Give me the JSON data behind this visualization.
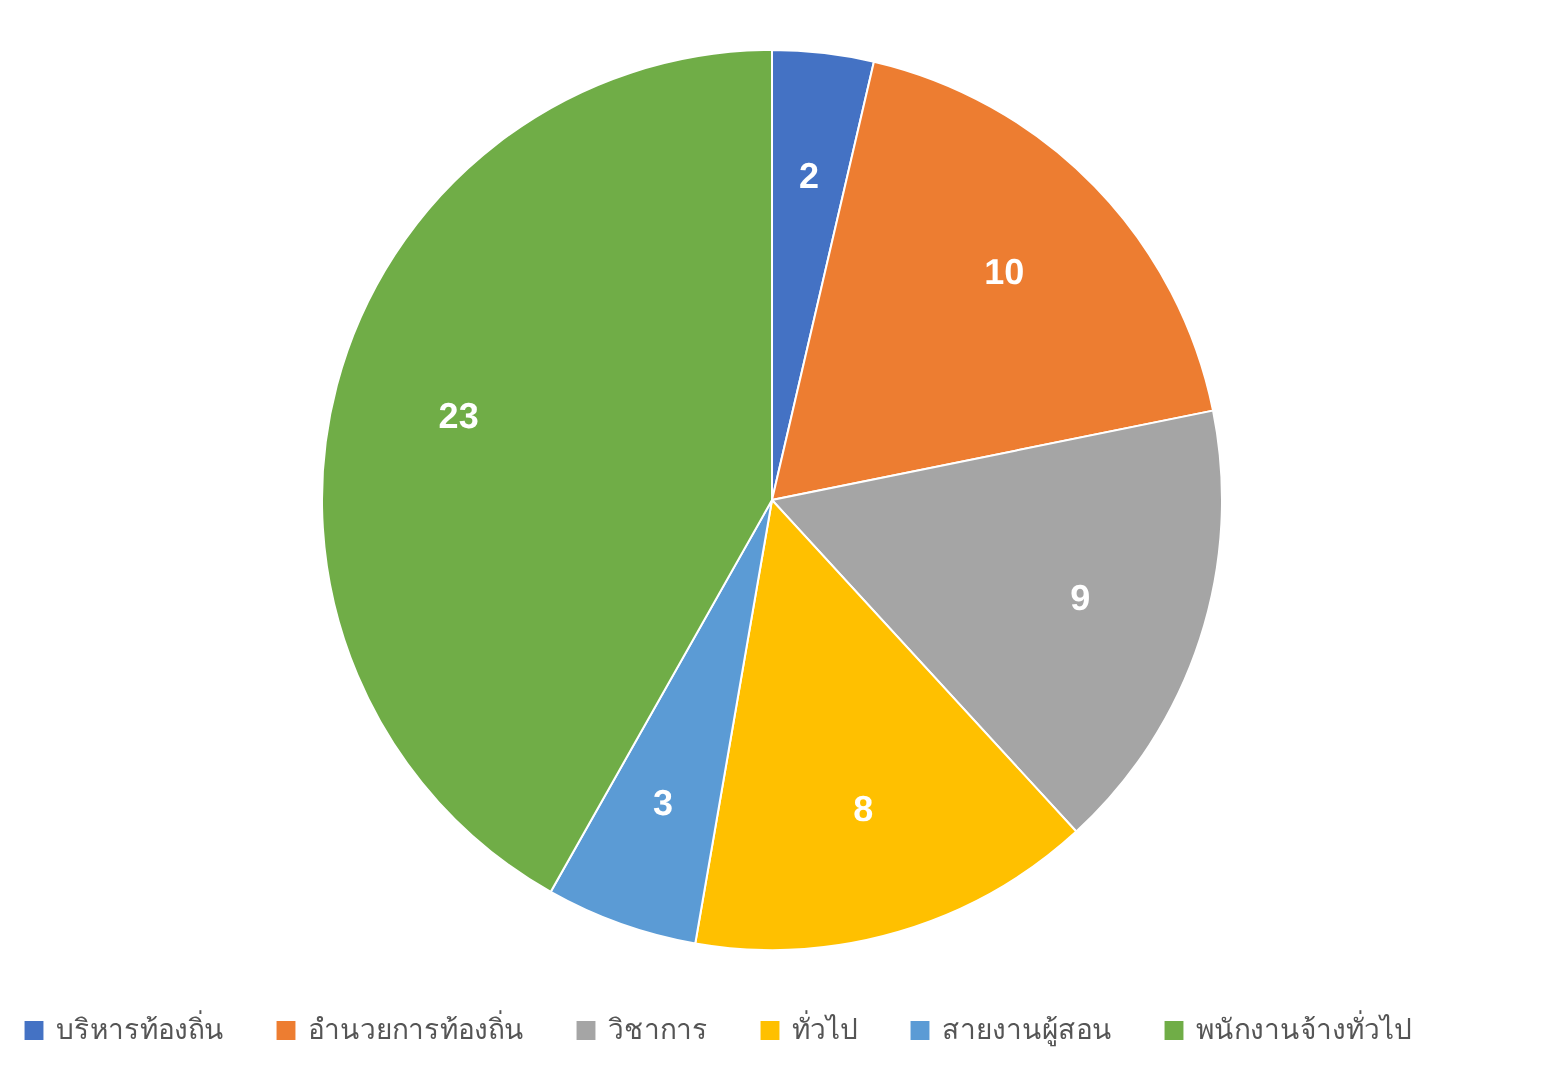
{
  "chart_data": {
    "type": "pie",
    "categories": [
      "บริหารท้องถิ่น",
      "อำนวยการท้องถิ่น",
      "วิชาการ",
      "ทั่วไป",
      "สายงานผู้สอน",
      "พนักงานจ้างทั่วไป"
    ],
    "values": [
      2,
      10,
      9,
      8,
      3,
      23
    ],
    "colors": [
      "#4472c4",
      "#ed7d31",
      "#a5a5a5",
      "#ffc000",
      "#5b9bd5",
      "#70ad47"
    ],
    "data_labels": true,
    "legend": "bottom"
  }
}
